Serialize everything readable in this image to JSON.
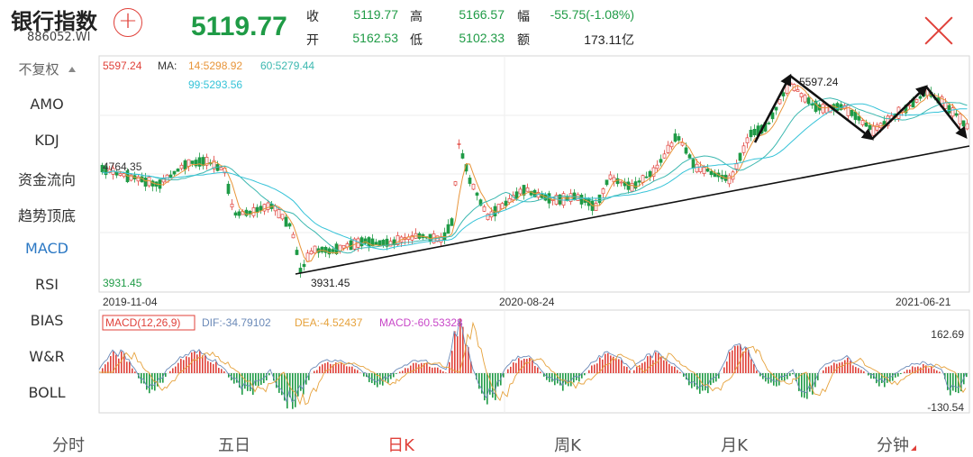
{
  "header": {
    "index_name": "银行指数",
    "index_code": "886052.WI",
    "last_price": "5119.77",
    "quotes": [
      {
        "label": "收",
        "value": "5119.77"
      },
      {
        "label": "高",
        "value": "5166.57"
      },
      {
        "label": "幅",
        "value": "-55.75(-1.08%)"
      },
      {
        "label": "开",
        "value": "5162.53"
      },
      {
        "label": "低",
        "value": "5102.33"
      },
      {
        "label": "额",
        "value": "173.11亿"
      }
    ]
  },
  "sidebar": {
    "items": [
      "不复权",
      "AMO",
      "KDJ",
      "资金流向",
      "趋势顶底",
      "MACD",
      "RSI",
      "BIAS",
      "W&R",
      "BOLL"
    ],
    "active": "MACD"
  },
  "price_panel": {
    "cur_label": "5597.24",
    "ma_title": "MA:",
    "ma14": "14:5298.92",
    "ma60": "60:5279.44",
    "ma99": "99:5293.56",
    "left_mark": "4764.35",
    "low_axis": "3931.45",
    "low_annot": "3931.45",
    "high_annot": "5597.24",
    "dates": [
      "2019-11-04",
      "2020-08-24",
      "2021-06-21"
    ]
  },
  "macd_panel": {
    "title": "MACD(12,26,9)",
    "dif": "DIF:-34.79102",
    "dea": "DEA:-4.52437",
    "macd": "MACD:-60.53328",
    "max_label": "162.69",
    "min_label": "-130.54"
  },
  "tabs": [
    "分时",
    "五日",
    "日K",
    "周K",
    "月K",
    "分钟"
  ],
  "active_tab": "日K",
  "colors": {
    "up": "#e0413a",
    "down": "#1f9b46",
    "ma14": "#e8953a",
    "ma60": "#3cb8b0",
    "ma99": "#36c3d8",
    "macd_dif": "#6b8ab8",
    "macd_dea": "#e6a23c",
    "macd_bar": "#c847c8",
    "accent": "#e0413a"
  },
  "chart_data": [
    {
      "type": "line",
      "title": "银行指数 886052.WI",
      "x": [
        "2019-11-04",
        "2020-08-24",
        "2021-06-21"
      ],
      "ylim": [
        3931.45,
        5597.24
      ],
      "series": [
        {
          "name": "MA 14",
          "last": 5298.92
        },
        {
          "name": "MA 60",
          "last": 5279.44
        },
        {
          "name": "MA 99",
          "last": 5293.56
        }
      ],
      "annotations": [
        "3931.45",
        "5597.24",
        "4764.35"
      ]
    },
    {
      "type": "bar",
      "title": "MACD(12,26,9)",
      "series": [
        {
          "name": "DIF",
          "last": -34.79102
        },
        {
          "name": "DEA",
          "last": -4.52437
        },
        {
          "name": "MACD",
          "last": -60.53328
        }
      ],
      "ylim": [
        -130.54,
        162.69
      ]
    }
  ]
}
